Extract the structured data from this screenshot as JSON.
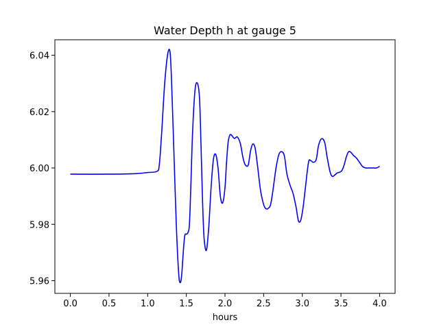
{
  "chart_data": {
    "type": "line",
    "title": "Water Depth h at gauge 5",
    "xlabel": "hours",
    "ylabel": "",
    "xlim": [
      -0.2,
      4.2
    ],
    "ylim": [
      5.9555,
      6.0455
    ],
    "grid": false,
    "legend": "none",
    "x_ticks": [
      0.0,
      0.5,
      1.0,
      1.5,
      2.0,
      2.5,
      3.0,
      3.5,
      4.0
    ],
    "x_tick_labels": [
      "0.0",
      "0.5",
      "1.0",
      "1.5",
      "2.0",
      "2.5",
      "3.0",
      "3.5",
      "4.0"
    ],
    "y_ticks": [
      5.96,
      5.98,
      6.0,
      6.02,
      6.04
    ],
    "y_tick_labels": [
      "5.96",
      "5.98",
      "6.00",
      "6.02",
      "6.04"
    ],
    "series": [
      {
        "name": "",
        "color": "#0000ff",
        "x": [
          0.0,
          0.5,
          0.85,
          1.0,
          1.12,
          1.15,
          1.18,
          1.22,
          1.26,
          1.29,
          1.31,
          1.34,
          1.37,
          1.4,
          1.42,
          1.44,
          1.46,
          1.48,
          1.5,
          1.52,
          1.54,
          1.56,
          1.58,
          1.61,
          1.64,
          1.67,
          1.69,
          1.71,
          1.73,
          1.76,
          1.79,
          1.82,
          1.85,
          1.88,
          1.91,
          1.94,
          1.97,
          2.0,
          2.02,
          2.04,
          2.06,
          2.08,
          2.12,
          2.16,
          2.2,
          2.23,
          2.26,
          2.3,
          2.33,
          2.36,
          2.39,
          2.42,
          2.46,
          2.5,
          2.53,
          2.56,
          2.59,
          2.62,
          2.66,
          2.7,
          2.74,
          2.77,
          2.8,
          2.84,
          2.88,
          2.92,
          2.95,
          2.98,
          3.01,
          3.04,
          3.08,
          3.11,
          3.14,
          3.18,
          3.21,
          3.25,
          3.29,
          3.32,
          3.36,
          3.39,
          3.42,
          3.45,
          3.48,
          3.51,
          3.54,
          3.57,
          3.6,
          3.63,
          3.66,
          3.7,
          3.74,
          3.78,
          3.82,
          3.85,
          3.88,
          3.92,
          3.96,
          4.0
        ],
        "y": [
          5.9978,
          5.9978,
          5.998,
          5.9984,
          5.9988,
          6.001,
          6.012,
          6.03,
          6.0405,
          6.041,
          6.03,
          6.005,
          5.98,
          5.963,
          5.9593,
          5.962,
          5.97,
          5.976,
          5.9765,
          5.977,
          5.98,
          5.995,
          6.012,
          6.027,
          6.0302,
          6.025,
          6.008,
          5.988,
          5.975,
          5.9708,
          5.979,
          5.993,
          6.003,
          6.0048,
          6.0,
          5.99,
          5.9876,
          5.993,
          6.002,
          6.009,
          6.0115,
          6.0118,
          6.0105,
          6.011,
          6.0085,
          6.004,
          6.0012,
          6.001,
          6.006,
          6.0085,
          6.007,
          6.001,
          5.992,
          5.987,
          5.9855,
          5.9857,
          5.987,
          5.992,
          6.0,
          6.005,
          6.0057,
          6.004,
          5.998,
          5.994,
          5.991,
          5.986,
          5.9812,
          5.9815,
          5.986,
          5.993,
          6.002,
          6.0026,
          6.002,
          6.003,
          6.008,
          6.0104,
          6.009,
          6.004,
          5.9985,
          5.997,
          5.9975,
          5.9982,
          5.9985,
          5.999,
          6.001,
          6.004,
          6.0058,
          6.0055,
          6.0045,
          6.0035,
          6.002,
          6.0005,
          6.0,
          6.0,
          6.0,
          6.0,
          6.0,
          6.0006
        ]
      }
    ]
  }
}
